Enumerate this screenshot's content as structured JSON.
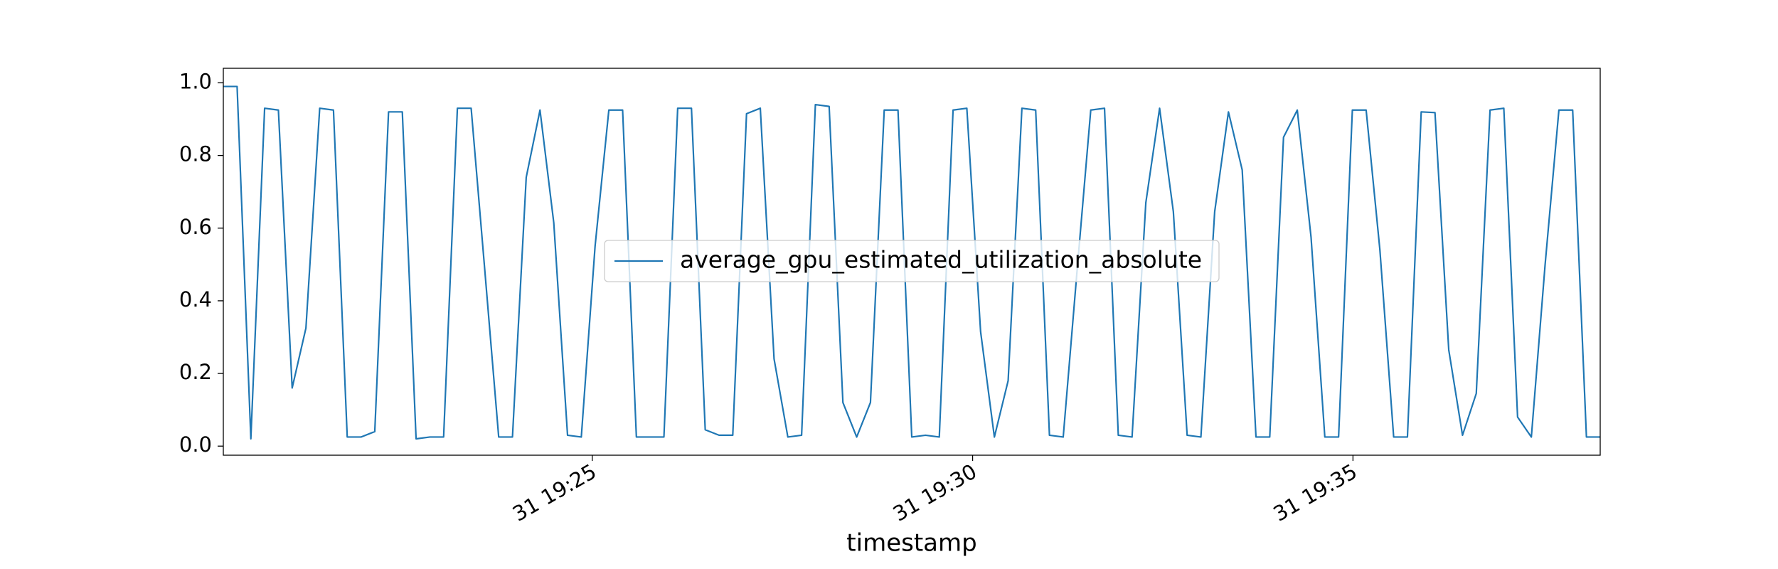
{
  "chart_data": {
    "type": "line",
    "x_label": "timestamp",
    "x": [
      20.15,
      20.331,
      20.512,
      20.693,
      20.874,
      21.055,
      21.236,
      21.417,
      21.598,
      21.779,
      21.96,
      22.141,
      22.322,
      22.503,
      22.684,
      22.865,
      23.046,
      23.227,
      23.408,
      23.589,
      23.77,
      23.951,
      24.132,
      24.313,
      24.494,
      24.675,
      24.856,
      25.037,
      25.218,
      25.399,
      25.58,
      25.761,
      25.942,
      26.123,
      26.304,
      26.485,
      26.666,
      26.847,
      27.028,
      27.209,
      27.39,
      27.571,
      27.752,
      27.933,
      28.114,
      28.295,
      28.476,
      28.657,
      28.838,
      29.019,
      29.2,
      29.381,
      29.562,
      29.743,
      29.924,
      30.105,
      30.286,
      30.467,
      30.648,
      30.829,
      31.01,
      31.191,
      31.372,
      31.553,
      31.734,
      31.915,
      32.096,
      32.277,
      32.458,
      32.639,
      32.82,
      33.001,
      33.182,
      33.363,
      33.544,
      33.725,
      33.906,
      34.087,
      34.268,
      34.449,
      34.63,
      34.811,
      34.992,
      35.173,
      35.354,
      35.535,
      35.716,
      35.897,
      36.078,
      36.259,
      36.44,
      36.621,
      36.802,
      36.983,
      37.164,
      37.345,
      37.526,
      37.707,
      37.888,
      38.069,
      38.25
    ],
    "series": [
      {
        "name": "average_gpu_estimated_utilization_absolute",
        "color": "#1f77b4",
        "values": [
          0.99,
          0.99,
          0.02,
          0.93,
          0.925,
          0.16,
          0.325,
          0.93,
          0.925,
          0.025,
          0.025,
          0.04,
          0.92,
          0.92,
          0.02,
          0.025,
          0.025,
          0.93,
          0.93,
          0.48,
          0.025,
          0.025,
          0.74,
          0.925,
          0.615,
          0.03,
          0.025,
          0.55,
          0.925,
          0.925,
          0.025,
          0.025,
          0.025,
          0.93,
          0.93,
          0.045,
          0.03,
          0.03,
          0.915,
          0.93,
          0.24,
          0.025,
          0.03,
          0.94,
          0.935,
          0.12,
          0.025,
          0.12,
          0.925,
          0.925,
          0.025,
          0.03,
          0.025,
          0.925,
          0.93,
          0.315,
          0.025,
          0.18,
          0.93,
          0.925,
          0.03,
          0.025,
          0.48,
          0.925,
          0.93,
          0.03,
          0.025,
          0.67,
          0.93,
          0.645,
          0.03,
          0.025,
          0.645,
          0.92,
          0.76,
          0.025,
          0.025,
          0.85,
          0.925,
          0.575,
          0.025,
          0.025,
          0.925,
          0.925,
          0.54,
          0.025,
          0.025,
          0.92,
          0.918,
          0.265,
          0.03,
          0.145,
          0.925,
          0.93,
          0.08,
          0.025,
          0.5,
          0.925,
          0.925,
          0.025,
          0.025
        ]
      }
    ],
    "xlim": [
      20.15,
      38.25
    ],
    "xticks": [
      {
        "value": 25,
        "label": "31 19:25"
      },
      {
        "value": 30,
        "label": "31 19:30"
      },
      {
        "value": 35,
        "label": "31 19:35"
      }
    ],
    "ylim": [
      -0.025,
      1.04
    ],
    "yticks": [
      {
        "value": 0,
        "label": "0.0"
      },
      0.2,
      0.4,
      0.6,
      0.8,
      {
        "value": 1,
        "label": "1.0"
      }
    ],
    "legend": "center"
  }
}
